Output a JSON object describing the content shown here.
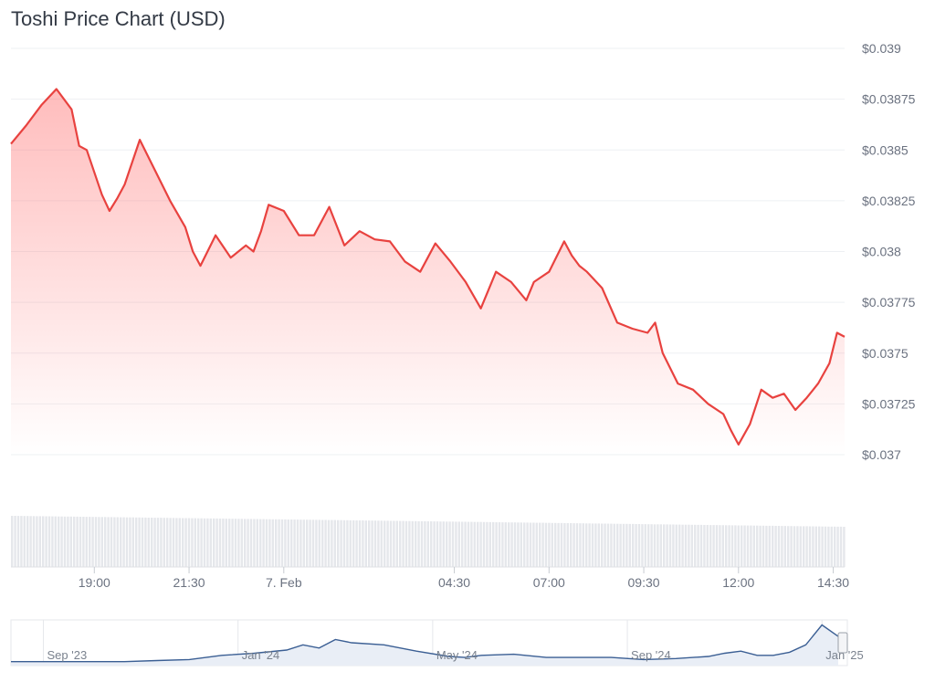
{
  "title": "Toshi Price Chart (USD)",
  "colors": {
    "price_line": "#e8423f",
    "area_fill": "#ff6b6b",
    "grid": "#eef0f3",
    "volume": "#e5e7eb",
    "navigator_line": "#3b5f94",
    "navigator_fill": "#e9eef6"
  },
  "chart_data": [
    {
      "type": "area",
      "title": "Toshi Price Chart (USD)",
      "ylim": [
        0.037,
        0.039
      ],
      "yticks": [
        "$0.039",
        "$0.03875",
        "$0.0385",
        "$0.03825",
        "$0.038",
        "$0.03775",
        "$0.0375",
        "$0.03725",
        "$0.037"
      ],
      "ytick_values": [
        0.039,
        0.03875,
        0.0385,
        0.03825,
        0.038,
        0.03775,
        0.0375,
        0.03725,
        0.037
      ],
      "xlim_hours": [
        16.8,
        38.8
      ],
      "xticks": [
        "19:00",
        "21:30",
        "7. Feb",
        "04:30",
        "07:00",
        "09:30",
        "12:00",
        "14:30"
      ],
      "xtick_hours": [
        19.0,
        21.5,
        24.0,
        28.5,
        31.0,
        33.5,
        36.0,
        38.5
      ],
      "grid": true,
      "series": [
        {
          "x_hours": [
            16.8,
            17.2,
            17.6,
            18.0,
            18.4,
            18.6,
            18.8,
            19.2,
            19.4,
            19.6,
            19.8,
            20.2,
            20.6,
            21.0,
            21.4,
            21.6,
            21.8,
            22.2,
            22.6,
            23.0,
            23.2,
            23.4,
            23.6,
            24.0,
            24.4,
            24.8,
            25.2,
            25.6,
            26.0,
            26.4,
            26.8,
            27.2,
            27.6,
            28.0,
            28.4,
            28.8,
            29.2,
            29.6,
            30.0,
            30.4,
            30.6,
            31.0,
            31.4,
            31.6,
            31.8,
            32.0,
            32.4,
            32.8,
            33.2,
            33.6,
            33.8,
            34.0,
            34.4,
            34.8,
            35.2,
            35.6,
            35.8,
            36.0,
            36.3,
            36.6,
            36.9,
            37.2,
            37.5,
            37.8,
            38.1,
            38.4,
            38.6,
            38.8
          ],
          "values": [
            0.03853,
            0.03862,
            0.03872,
            0.0388,
            0.0387,
            0.03852,
            0.0385,
            0.03828,
            0.0382,
            0.03826,
            0.03833,
            0.03855,
            0.0384,
            0.03825,
            0.03812,
            0.038,
            0.03793,
            0.03808,
            0.03797,
            0.03803,
            0.038,
            0.0381,
            0.03823,
            0.0382,
            0.03808,
            0.03808,
            0.03822,
            0.03803,
            0.0381,
            0.03806,
            0.03805,
            0.03795,
            0.0379,
            0.03804,
            0.03795,
            0.03785,
            0.03772,
            0.0379,
            0.03785,
            0.03776,
            0.03785,
            0.0379,
            0.03805,
            0.03798,
            0.03793,
            0.0379,
            0.03782,
            0.03765,
            0.03762,
            0.0376,
            0.03765,
            0.0375,
            0.03735,
            0.03732,
            0.03725,
            0.0372,
            0.03712,
            0.03705,
            0.03715,
            0.03732,
            0.03728,
            0.0373,
            0.03722,
            0.03728,
            0.03735,
            0.03745,
            0.0376,
            0.03758
          ]
        }
      ]
    },
    {
      "type": "line",
      "title": "",
      "xticks": [
        "Sep '23",
        "Jan '24",
        "May '24",
        "Sep '24",
        "Jan '25"
      ],
      "x_months": [
        -1,
        0,
        2,
        4,
        6,
        8,
        10,
        12,
        14,
        16,
        17,
        18,
        19,
        20,
        22,
        24,
        26,
        27,
        28,
        30,
        32,
        34,
        36,
        38,
        40,
        42,
        43,
        44,
        45,
        46,
        47,
        48,
        49,
        50
      ],
      "values": [
        0.002,
        0.002,
        0.002,
        0.002,
        0.002,
        0.003,
        0.004,
        0.008,
        0.01,
        0.013,
        0.018,
        0.015,
        0.023,
        0.02,
        0.018,
        0.012,
        0.007,
        0.006,
        0.008,
        0.009,
        0.006,
        0.006,
        0.006,
        0.004,
        0.005,
        0.007,
        0.01,
        0.012,
        0.008,
        0.008,
        0.011,
        0.018,
        0.037,
        0.026
      ]
    }
  ]
}
